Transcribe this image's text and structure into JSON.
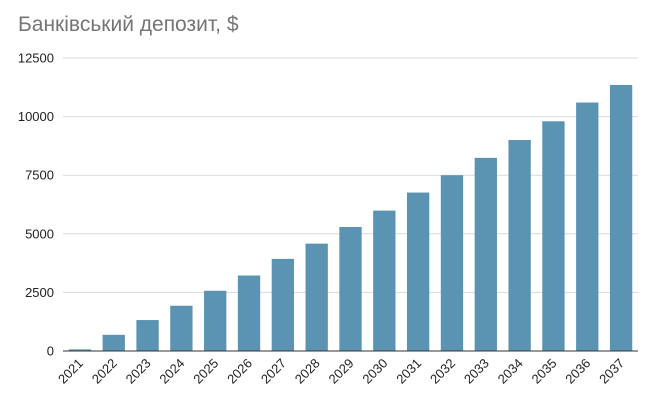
{
  "chart_data": {
    "type": "bar",
    "title": "Банківський депозит, $",
    "xlabel": "",
    "ylabel": "",
    "categories": [
      "2021",
      "2022",
      "2023",
      "2024",
      "2025",
      "2026",
      "2027",
      "2028",
      "2029",
      "2030",
      "2031",
      "2032",
      "2033",
      "2034",
      "2035",
      "2036",
      "2037"
    ],
    "values": [
      70,
      690,
      1320,
      1930,
      2570,
      3220,
      3930,
      4580,
      5290,
      5990,
      6760,
      7500,
      8240,
      9000,
      9800,
      10600,
      11350
    ],
    "ylim": [
      0,
      12500
    ],
    "yticks": [
      "0",
      "2500",
      "5000",
      "7500",
      "10000",
      "12500"
    ],
    "grid": true,
    "legend": "none",
    "colors": {
      "bar": "#5b93b3",
      "grid": "#d9d9d9",
      "axis": "#333333",
      "title": "#757575",
      "tick_text": "#222222"
    }
  }
}
